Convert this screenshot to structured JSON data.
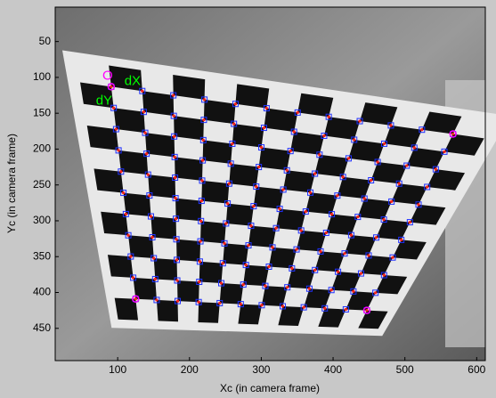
{
  "chart_data": {
    "type": "image",
    "xlabel": "Xc (in camera frame)",
    "ylabel": "Yc (in camera frame)",
    "xlim": [
      13,
      612
    ],
    "ylim": [
      2,
      495
    ],
    "y_reversed": true,
    "xticks": [
      100,
      200,
      300,
      400,
      500,
      600
    ],
    "yticks": [
      50,
      100,
      150,
      200,
      250,
      300,
      350,
      400,
      450
    ],
    "points": {
      "x": [
        91,
        567,
        125,
        447
      ],
      "y": [
        113,
        179,
        409,
        425
      ],
      "color": "#ff00ff"
    },
    "annotations": [
      "O",
      "dX",
      "dY"
    ],
    "annotation_colors": [
      "#ff00ff",
      "#00ff00",
      "#00ff00"
    ]
  }
}
